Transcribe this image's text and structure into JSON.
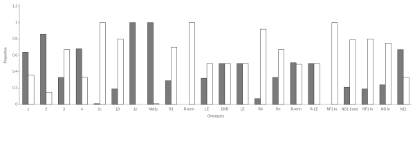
{
  "chart_data": {
    "type": "bar",
    "x_label": "Genotypes",
    "y_label": "Proportion",
    "categories": [
      "1",
      "2",
      "3",
      "4",
      "1c",
      "1D",
      "1e",
      "NM1c",
      "R1",
      "R-term",
      "LE",
      "DKR",
      "LE",
      "R4",
      "Rn",
      "R-term",
      "R-LE",
      "NF1 ln",
      "NG1 (rom)",
      "NF1 ln",
      "NG ln",
      "N11"
    ],
    "series": [
      {
        "color": "#7a7a7a",
        "values": [
          0.64,
          0.86,
          0.33,
          0.68,
          0.01,
          0.19,
          1.0,
          1.0,
          0.29,
          0,
          0.32,
          0.5,
          0.5,
          0.07,
          0.33,
          0.51,
          0.5,
          0,
          0.21,
          0.19,
          0.24,
          0.67
        ]
      },
      {
        "color": "#ffffff",
        "values": [
          0.36,
          0.15,
          0.67,
          0.33,
          1.0,
          0.8,
          0,
          0.01,
          0.7,
          1.0,
          0.5,
          0.5,
          0.5,
          0.92,
          0.67,
          0.49,
          0.5,
          1.0,
          0.79,
          0.8,
          0.75,
          0.33
        ]
      }
    ],
    "ylim": [
      0,
      1.2
    ],
    "yticks": [
      0,
      0.2,
      0.4,
      0.6,
      0.8,
      1,
      1.2
    ],
    "grid": false
  }
}
